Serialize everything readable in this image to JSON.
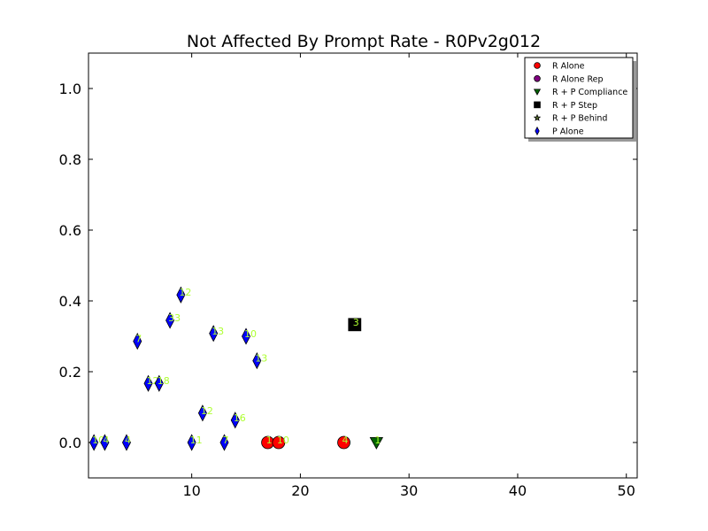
{
  "chart_data": {
    "type": "scatter",
    "title": "Not Affected By Prompt Rate - R0Pv2g012",
    "xlim": [
      0.5,
      51
    ],
    "ylim": [
      -0.1,
      1.1
    ],
    "x_ticks": [
      10,
      20,
      30,
      40,
      50
    ],
    "y_ticks": [
      0.0,
      0.2,
      0.4,
      0.6,
      0.8,
      1.0
    ],
    "grid": false,
    "legend_position": "top-right",
    "label_color": "#adff2f",
    "series": [
      {
        "name": "R Alone",
        "marker": "circle",
        "color": "#ff0000",
        "points": [
          {
            "x": 17,
            "y": 0.0,
            "label": "1"
          },
          {
            "x": 18,
            "y": 0.0,
            "label": "10"
          },
          {
            "x": 24,
            "y": 0.0,
            "label": "4"
          }
        ]
      },
      {
        "name": "R Alone Rep",
        "marker": "circle",
        "color": "#800080",
        "points": []
      },
      {
        "name": "R + P Compliance",
        "marker": "triangle-down",
        "color": "#006400",
        "points": [
          {
            "x": 27,
            "y": 0.0,
            "label": "1"
          }
        ]
      },
      {
        "name": "R + P Step",
        "marker": "square",
        "color": "#000000",
        "points": [
          {
            "x": 25,
            "y": 0.333,
            "label": "3"
          }
        ]
      },
      {
        "name": "R + P Behind",
        "marker": "star",
        "color": "#556b2f",
        "points": []
      },
      {
        "name": "P Alone",
        "marker": "diamond",
        "color": "#0000ff",
        "points": [
          {
            "x": 1,
            "y": 0.0,
            "label": "10"
          },
          {
            "x": 2,
            "y": 0.0,
            "label": "4"
          },
          {
            "x": 4,
            "y": 0.0,
            "label": "4"
          },
          {
            "x": 5,
            "y": 0.286,
            "label": "7"
          },
          {
            "x": 6,
            "y": 0.167,
            "label": "12"
          },
          {
            "x": 7,
            "y": 0.167,
            "label": "18"
          },
          {
            "x": 8,
            "y": 0.345,
            "label": "33"
          },
          {
            "x": 9,
            "y": 0.417,
            "label": "12"
          },
          {
            "x": 10,
            "y": 0.0,
            "label": "11"
          },
          {
            "x": 11,
            "y": 0.083,
            "label": "12"
          },
          {
            "x": 12,
            "y": 0.308,
            "label": "13"
          },
          {
            "x": 13,
            "y": 0.0,
            "label": "7"
          },
          {
            "x": 14,
            "y": 0.063,
            "label": "16"
          },
          {
            "x": 15,
            "y": 0.3,
            "label": "10"
          },
          {
            "x": 16,
            "y": 0.231,
            "label": "13"
          }
        ]
      }
    ]
  }
}
